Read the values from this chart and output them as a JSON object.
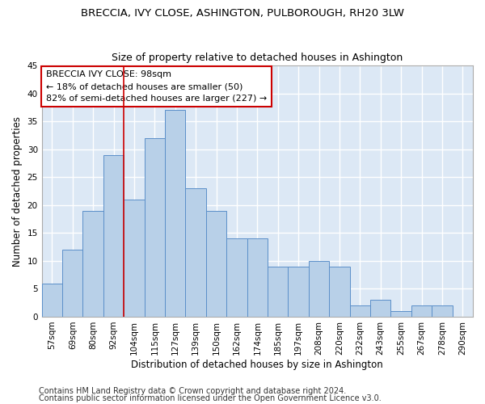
{
  "title": "BRECCIA, IVY CLOSE, ASHINGTON, PULBOROUGH, RH20 3LW",
  "subtitle": "Size of property relative to detached houses in Ashington",
  "xlabel": "Distribution of detached houses by size in Ashington",
  "ylabel": "Number of detached properties",
  "categories": [
    "57sqm",
    "69sqm",
    "80sqm",
    "92sqm",
    "104sqm",
    "115sqm",
    "127sqm",
    "139sqm",
    "150sqm",
    "162sqm",
    "174sqm",
    "185sqm",
    "197sqm",
    "208sqm",
    "220sqm",
    "232sqm",
    "243sqm",
    "255sqm",
    "267sqm",
    "278sqm",
    "290sqm"
  ],
  "values": [
    6,
    12,
    19,
    29,
    21,
    32,
    37,
    23,
    19,
    14,
    14,
    9,
    9,
    10,
    9,
    2,
    3,
    1,
    2,
    2,
    0
  ],
  "bar_color": "#b8d0e8",
  "bar_edge_color": "#5b8fc9",
  "vline_x_index": 3,
  "vline_color": "#cc0000",
  "annotation_text": "BRECCIA IVY CLOSE: 98sqm\n← 18% of detached houses are smaller (50)\n82% of semi-detached houses are larger (227) →",
  "annotation_box_color": "#ffffff",
  "annotation_box_edge_color": "#cc0000",
  "ylim": [
    0,
    45
  ],
  "yticks": [
    0,
    5,
    10,
    15,
    20,
    25,
    30,
    35,
    40,
    45
  ],
  "footer_line1": "Contains HM Land Registry data © Crown copyright and database right 2024.",
  "footer_line2": "Contains public sector information licensed under the Open Government Licence v3.0.",
  "bg_color": "#dce8f5",
  "grid_color": "#ffffff",
  "fig_bg_color": "#ffffff",
  "title_fontsize": 9.5,
  "subtitle_fontsize": 9,
  "tick_fontsize": 7.5,
  "ylabel_fontsize": 8.5,
  "xlabel_fontsize": 8.5,
  "annotation_fontsize": 8,
  "footer_fontsize": 7
}
